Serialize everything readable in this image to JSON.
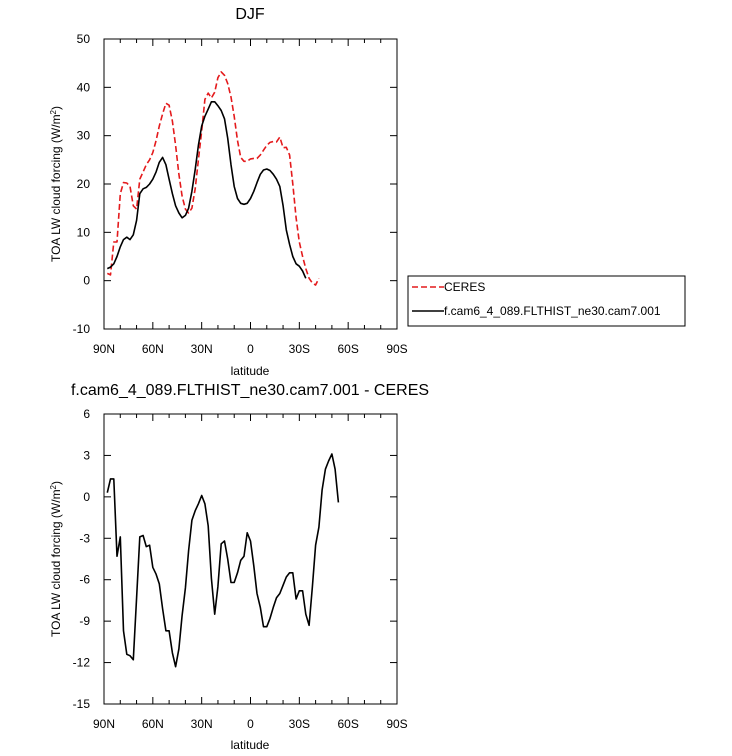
{
  "chart_data": [
    {
      "type": "line",
      "title": "DJF",
      "xlabel": "latitude",
      "ylabel": "TOA LW cloud forcing (W/m",
      "ylabel_sup": "2",
      "ylabel_close": ")",
      "xlim": [
        90,
        -90
      ],
      "ylim": [
        -10,
        50
      ],
      "x_ticks": [
        {
          "value": 90,
          "label": "90N"
        },
        {
          "value": 60,
          "label": "60N"
        },
        {
          "value": 30,
          "label": "30N"
        },
        {
          "value": 0,
          "label": "0"
        },
        {
          "value": -30,
          "label": "30S"
        },
        {
          "value": -60,
          "label": "60S"
        },
        {
          "value": -90,
          "label": "90S"
        }
      ],
      "y_ticks": [
        -10,
        0,
        10,
        20,
        30,
        40,
        50
      ],
      "legend_position": "right",
      "series": [
        {
          "name": "CERES",
          "color": "#e41a1c",
          "dash": "dashed",
          "points": [
            [
              88,
              1.5
            ],
            [
              86,
              1.2
            ],
            [
              84,
              8
            ],
            [
              82,
              8
            ],
            [
              80,
              18
            ],
            [
              78,
              20.3
            ],
            [
              76,
              20.2
            ],
            [
              74,
              19.5
            ],
            [
              72,
              15.5
            ],
            [
              70,
              14.8
            ],
            [
              68,
              21
            ],
            [
              66,
              22.5
            ],
            [
              64,
              24
            ],
            [
              62,
              25
            ],
            [
              60,
              26.5
            ],
            [
              58,
              29
            ],
            [
              56,
              32
            ],
            [
              54,
              34.5
            ],
            [
              52,
              36.7
            ],
            [
              50,
              36.3
            ],
            [
              48,
              33
            ],
            [
              46,
              28
            ],
            [
              44,
              22
            ],
            [
              42,
              17.5
            ],
            [
              40,
              14.8
            ],
            [
              38,
              14
            ],
            [
              36,
              15
            ],
            [
              34,
              19
            ],
            [
              32,
              25
            ],
            [
              30,
              31
            ],
            [
              28,
              37.5
            ],
            [
              26,
              38.8
            ],
            [
              24,
              37.8
            ],
            [
              22,
              39
            ],
            [
              20,
              42
            ],
            [
              18,
              43.2
            ],
            [
              16,
              42.5
            ],
            [
              14,
              40.8
            ],
            [
              12,
              38
            ],
            [
              10,
              34
            ],
            [
              8,
              29
            ],
            [
              6,
              25.5
            ],
            [
              4,
              24.7
            ],
            [
              2,
              24.7
            ],
            [
              0,
              25.2
            ],
            [
              -2,
              25.3
            ],
            [
              -4,
              25.3
            ],
            [
              -6,
              26
            ],
            [
              -8,
              27
            ],
            [
              -10,
              28
            ],
            [
              -12,
              28.6
            ],
            [
              -14,
              28.8
            ],
            [
              -16,
              28.7
            ],
            [
              -18,
              29.7
            ],
            [
              -20,
              27.5
            ],
            [
              -22,
              27.6
            ],
            [
              -24,
              26
            ],
            [
              -26,
              20
            ],
            [
              -28,
              13
            ],
            [
              -30,
              8
            ],
            [
              -32,
              5
            ],
            [
              -34,
              2.5
            ],
            [
              -36,
              0.5
            ],
            [
              -38,
              -0.5
            ],
            [
              -40,
              -0.9
            ],
            [
              -42,
              0.5
            ]
          ]
        },
        {
          "name": "f.cam6_4_089.FLTHIST_ne30.cam7.001",
          "color": "#000000",
          "dash": "solid",
          "points": [
            [
              88,
              2.5
            ],
            [
              86,
              2.8
            ],
            [
              84,
              3.5
            ],
            [
              82,
              5
            ],
            [
              80,
              7
            ],
            [
              78,
              8.5
            ],
            [
              76,
              9
            ],
            [
              74,
              8.5
            ],
            [
              72,
              9.5
            ],
            [
              70,
              12.5
            ],
            [
              68,
              18
            ],
            [
              66,
              19
            ],
            [
              64,
              19.3
            ],
            [
              62,
              20
            ],
            [
              60,
              21
            ],
            [
              58,
              22.5
            ],
            [
              56,
              24.5
            ],
            [
              54,
              25.5
            ],
            [
              52,
              24
            ],
            [
              50,
              21
            ],
            [
              48,
              18
            ],
            [
              46,
              15.5
            ],
            [
              44,
              14
            ],
            [
              42,
              13
            ],
            [
              40,
              13.5
            ],
            [
              38,
              15
            ],
            [
              36,
              18.5
            ],
            [
              34,
              23
            ],
            [
              32,
              28
            ],
            [
              30,
              32
            ],
            [
              28,
              34
            ],
            [
              26,
              35.5
            ],
            [
              24,
              37
            ],
            [
              22,
              37
            ],
            [
              20,
              36.2
            ],
            [
              18,
              35.2
            ],
            [
              16,
              33.5
            ],
            [
              14,
              29.5
            ],
            [
              12,
              24
            ],
            [
              10,
              19.5
            ],
            [
              8,
              17
            ],
            [
              6,
              16
            ],
            [
              4,
              15.8
            ],
            [
              2,
              16
            ],
            [
              0,
              17
            ],
            [
              -2,
              18.5
            ],
            [
              -4,
              20.3
            ],
            [
              -6,
              22
            ],
            [
              -8,
              22.9
            ],
            [
              -10,
              23.1
            ],
            [
              -12,
              22.8
            ],
            [
              -14,
              22
            ],
            [
              -16,
              21
            ],
            [
              -18,
              19.5
            ],
            [
              -20,
              15.5
            ],
            [
              -22,
              10.5
            ],
            [
              -24,
              7.5
            ],
            [
              -26,
              5
            ],
            [
              -28,
              3.5
            ],
            [
              -30,
              3
            ],
            [
              -32,
              2
            ],
            [
              -34,
              0.5
            ]
          ]
        }
      ]
    },
    {
      "type": "line",
      "title": "f.cam6_4_089.FLTHIST_ne30.cam7.001 - CERES",
      "xlabel": "latitude",
      "ylabel": "TOA LW cloud forcing (W/m",
      "ylabel_sup": "2",
      "ylabel_close": ")",
      "xlim": [
        90,
        -90
      ],
      "ylim": [
        -15,
        6
      ],
      "x_ticks": [
        {
          "value": 90,
          "label": "90N"
        },
        {
          "value": 60,
          "label": "60N"
        },
        {
          "value": 30,
          "label": "30N"
        },
        {
          "value": 0,
          "label": "0"
        },
        {
          "value": -30,
          "label": "30S"
        },
        {
          "value": -60,
          "label": "60S"
        },
        {
          "value": -90,
          "label": "90S"
        }
      ],
      "y_ticks": [
        -15,
        -12,
        -9,
        -6,
        -3,
        0,
        3,
        6
      ],
      "series": [
        {
          "color": "#000000",
          "dash": "solid",
          "points": [
            [
              88,
              0.3
            ],
            [
              86,
              1.3
            ],
            [
              84,
              1.3
            ],
            [
              82,
              -4.3
            ],
            [
              80,
              -2.9
            ],
            [
              78,
              -9.7
            ],
            [
              76,
              -11.4
            ],
            [
              74,
              -11.5
            ],
            [
              72,
              -11.8
            ],
            [
              70,
              -7.3
            ],
            [
              68,
              -2.9
            ],
            [
              66,
              -2.8
            ],
            [
              64,
              -3.6
            ],
            [
              62,
              -3.5
            ],
            [
              60,
              -5.1
            ],
            [
              58,
              -5.6
            ],
            [
              56,
              -6.3
            ],
            [
              54,
              -8.1
            ],
            [
              52,
              -9.7
            ],
            [
              50,
              -9.7
            ],
            [
              48,
              -11.3
            ],
            [
              46,
              -12.3
            ],
            [
              44,
              -11
            ],
            [
              42,
              -8.6
            ],
            [
              40,
              -6.6
            ],
            [
              38,
              -3.9
            ],
            [
              36,
              -1.7
            ],
            [
              34,
              -1
            ],
            [
              32,
              -0.5
            ],
            [
              30,
              0.1
            ],
            [
              28,
              -0.5
            ],
            [
              26,
              -2.1
            ],
            [
              24,
              -5.9
            ],
            [
              22,
              -8.5
            ],
            [
              20,
              -6.5
            ],
            [
              18,
              -3.4
            ],
            [
              16,
              -3.2
            ],
            [
              14,
              -4.5
            ],
            [
              12,
              -6.2
            ],
            [
              10,
              -6.2
            ],
            [
              8,
              -5.5
            ],
            [
              6,
              -4.6
            ],
            [
              4,
              -4.3
            ],
            [
              2,
              -2.6
            ],
            [
              0,
              -3.2
            ],
            [
              -2,
              -5
            ],
            [
              -4,
              -7
            ],
            [
              -6,
              -8
            ],
            [
              -8,
              -9.4
            ],
            [
              -10,
              -9.4
            ],
            [
              -12,
              -8.8
            ],
            [
              -14,
              -8
            ],
            [
              -16,
              -7.3
            ],
            [
              -18,
              -7
            ],
            [
              -20,
              -6.4
            ],
            [
              -22,
              -5.8
            ],
            [
              -24,
              -5.5
            ],
            [
              -26,
              -5.5
            ],
            [
              -28,
              -7.4
            ],
            [
              -30,
              -6.8
            ],
            [
              -32,
              -6.8
            ],
            [
              -34,
              -8.5
            ],
            [
              -36,
              -9.3
            ],
            [
              -38,
              -6.5
            ],
            [
              -40,
              -3.5
            ],
            [
              -42,
              -2.2
            ],
            [
              -44,
              0.5
            ],
            [
              -46,
              2
            ],
            [
              -48,
              2.6
            ],
            [
              -50,
              3.1
            ],
            [
              -52,
              2
            ],
            [
              -54,
              -0.4
            ]
          ]
        }
      ]
    }
  ]
}
